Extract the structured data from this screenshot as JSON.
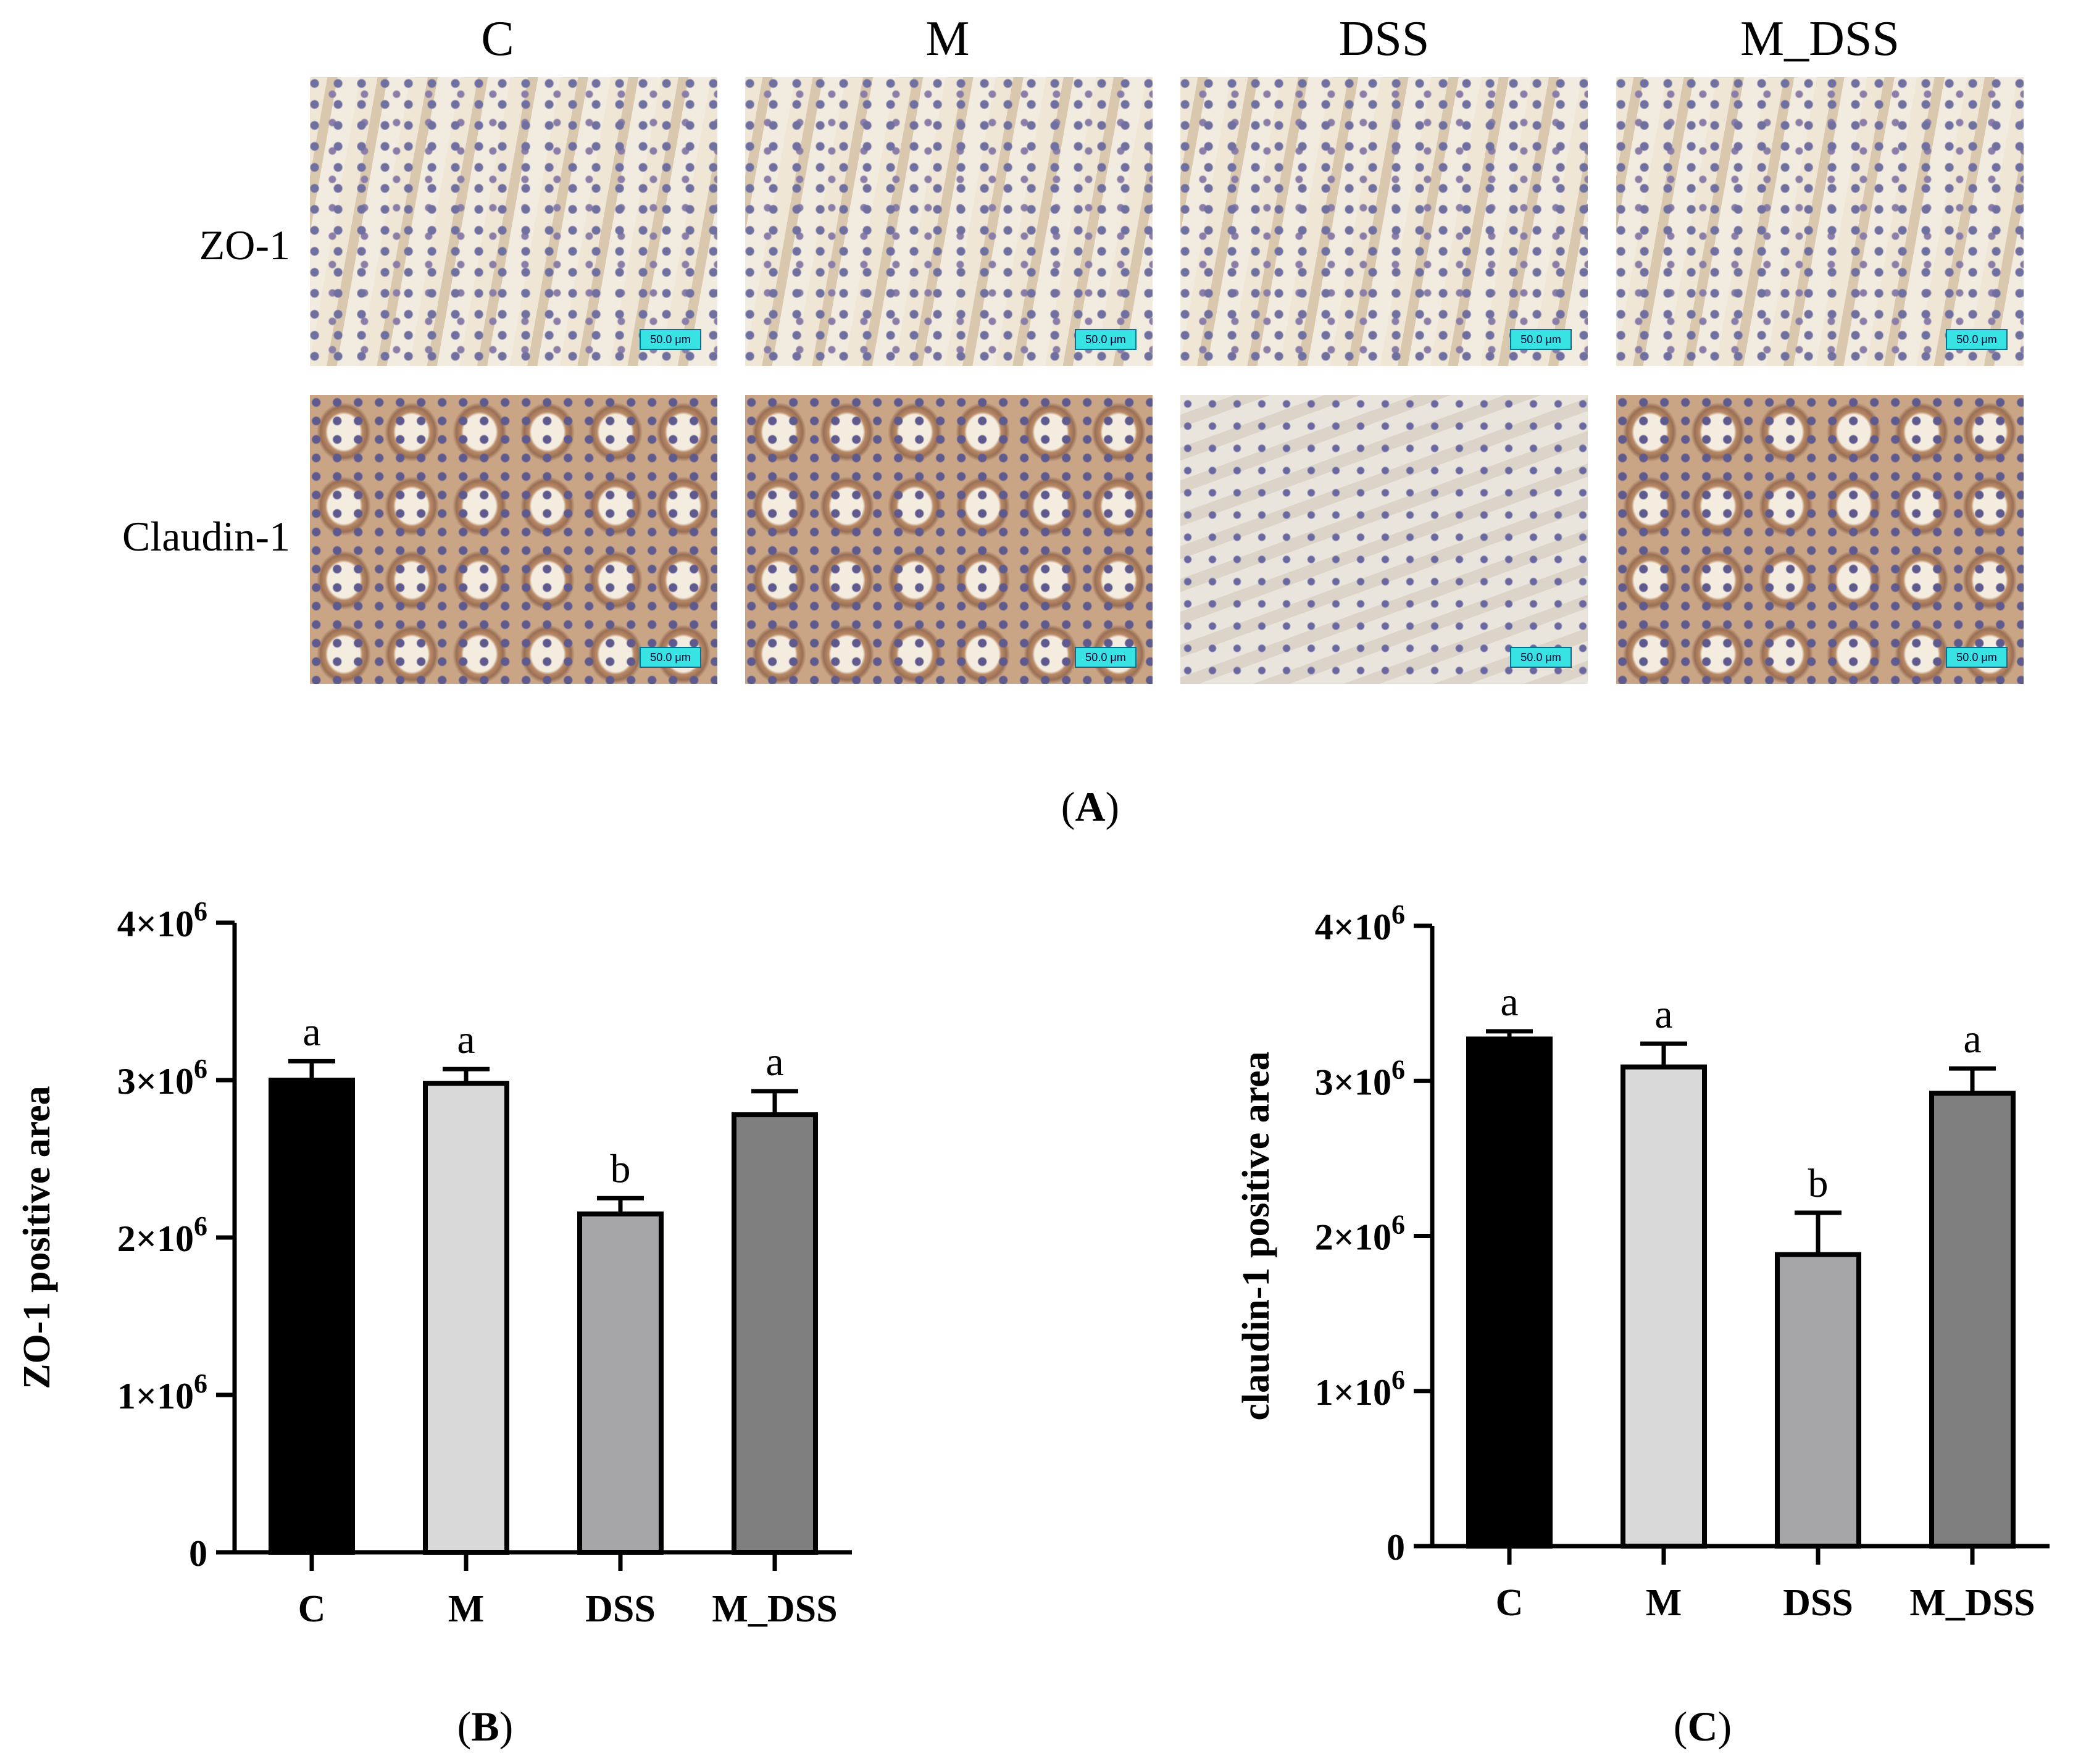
{
  "panel_a": {
    "label_prefix": "(",
    "label_letter": "A",
    "label_suffix": ")",
    "columns": [
      "C",
      "M",
      "DSS",
      "M_DSS"
    ],
    "rows": [
      "ZO-1",
      "Claudin-1"
    ],
    "scalebar": "50.0 μm"
  },
  "panel_b": {
    "label_prefix": "(",
    "label_letter": "B",
    "label_suffix": ")"
  },
  "panel_c": {
    "label_prefix": "(",
    "label_letter": "C",
    "label_suffix": ")"
  },
  "chart_data": [
    {
      "type": "bar",
      "title": "",
      "xlabel": "",
      "ylabel": "ZO-1 positive area",
      "categories": [
        "C",
        "M",
        "DSS",
        "M_DSS"
      ],
      "values": [
        3000000,
        2980000,
        2150000,
        2780000
      ],
      "errors": [
        120000,
        90000,
        100000,
        150000
      ],
      "letters": [
        "a",
        "a",
        "b",
        "a"
      ],
      "colors": [
        "#000000",
        "#d9d9d9",
        "#a6a6a8",
        "#7f7f7f"
      ],
      "ylim": [
        0,
        4000000
      ],
      "yticks": [
        0,
        1000000,
        2000000,
        3000000,
        4000000
      ],
      "ytick_labels": [
        "0",
        "1×10",
        "2×10",
        "3×10",
        "4×10"
      ],
      "ytick_exp": [
        "",
        "6",
        "6",
        "6",
        "6"
      ]
    },
    {
      "type": "bar",
      "title": "",
      "xlabel": "",
      "ylabel": "claudin-1 positive area",
      "categories": [
        "C",
        "M",
        "DSS",
        "M_DSS"
      ],
      "values": [
        3270000,
        3090000,
        1880000,
        2920000
      ],
      "errors": [
        50000,
        150000,
        270000,
        160000
      ],
      "letters": [
        "a",
        "a",
        "b",
        "a"
      ],
      "colors": [
        "#000000",
        "#d9d9d9",
        "#a6a6a8",
        "#7f7f7f"
      ],
      "ylim": [
        0,
        4000000
      ],
      "yticks": [
        0,
        1000000,
        2000000,
        3000000,
        4000000
      ],
      "ytick_labels": [
        "0",
        "1×10",
        "2×10",
        "3×10",
        "4×10"
      ],
      "ytick_exp": [
        "",
        "6",
        "6",
        "6",
        "6"
      ]
    }
  ]
}
